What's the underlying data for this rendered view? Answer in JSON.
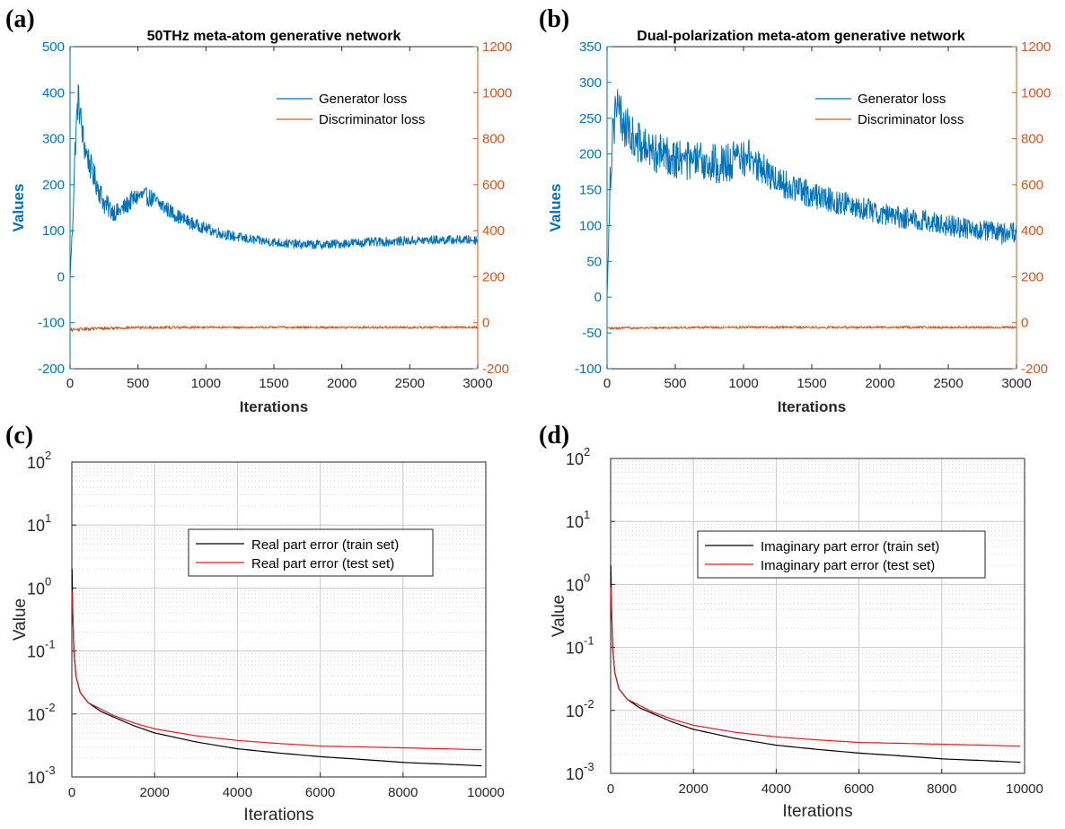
{
  "colors": {
    "generator": "#0072BD",
    "discriminator": "#D95319",
    "train": "#000000",
    "test": "#E41A1C",
    "axis": "#262626",
    "grid": "#c8c8c8"
  },
  "chart_data": [
    {
      "id": "a",
      "panel_label": "(a)",
      "type": "line",
      "title": "50THz meta-atom generative network",
      "xlabel": "Iterations",
      "ylabel_left": "Values",
      "ylabel_right": "",
      "xlim": [
        0,
        3000
      ],
      "ylim_left": [
        -200,
        500
      ],
      "ylim_right": [
        -200,
        1200
      ],
      "x_ticks": [
        0,
        500,
        1000,
        1500,
        2000,
        2500,
        3000
      ],
      "y_left_ticks": [
        -200,
        -100,
        0,
        100,
        200,
        300,
        400,
        500
      ],
      "y_right_ticks": [
        -200,
        0,
        200,
        400,
        600,
        800,
        1000,
        1200
      ],
      "legend_position": "top-right",
      "series": [
        {
          "name": "Generator loss",
          "axis": "left",
          "color_key": "generator",
          "x": [
            0,
            20,
            40,
            60,
            80,
            100,
            130,
            160,
            200,
            250,
            300,
            350,
            400,
            450,
            500,
            550,
            600,
            650,
            700,
            800,
            900,
            1000,
            1100,
            1200,
            1300,
            1400,
            1500,
            1600,
            1700,
            1800,
            1900,
            2000,
            2100,
            2200,
            2300,
            2400,
            2500,
            2600,
            2700,
            2800,
            2900,
            3000
          ],
          "y": [
            0,
            120,
            300,
            390,
            340,
            290,
            260,
            230,
            200,
            160,
            145,
            140,
            150,
            165,
            175,
            175,
            170,
            160,
            150,
            130,
            115,
            105,
            95,
            88,
            82,
            78,
            75,
            72,
            70,
            70,
            70,
            72,
            74,
            75,
            76,
            77,
            78,
            79,
            80,
            80,
            80,
            80
          ],
          "band": [
            0,
            20,
            40,
            40,
            35,
            35,
            30,
            30,
            28,
            25,
            22,
            20,
            20,
            20,
            20,
            20,
            20,
            18,
            18,
            15,
            14,
            12,
            12,
            11,
            11,
            10,
            10,
            10,
            10,
            10,
            10,
            10,
            10,
            10,
            10,
            10,
            10,
            10,
            10,
            10,
            10,
            10
          ]
        },
        {
          "name": "Discriminator loss",
          "axis": "right",
          "color_key": "discriminator",
          "x": [
            0,
            50,
            100,
            200,
            400,
            700,
            1000,
            1500,
            2000,
            2500,
            3000
          ],
          "y": [
            -30,
            -30,
            -28,
            -25,
            -22,
            -20,
            -20,
            -20,
            -20,
            -20,
            -20
          ],
          "band": [
            8,
            8,
            7,
            7,
            6,
            6,
            5,
            5,
            5,
            5,
            5
          ]
        }
      ]
    },
    {
      "id": "b",
      "panel_label": "(b)",
      "type": "line",
      "title": "Dual-polarization meta-atom generative network",
      "xlabel": "Iterations",
      "ylabel_left": "Values",
      "ylabel_right": "",
      "xlim": [
        0,
        3000
      ],
      "ylim_left": [
        -100,
        350
      ],
      "ylim_right": [
        -200,
        1200
      ],
      "x_ticks": [
        0,
        500,
        1000,
        1500,
        2000,
        2500,
        3000
      ],
      "y_left_ticks": [
        -100,
        -50,
        0,
        50,
        100,
        150,
        200,
        250,
        300,
        350
      ],
      "y_right_ticks": [
        -200,
        0,
        200,
        400,
        600,
        800,
        1000,
        1200
      ],
      "legend_position": "top-right",
      "series": [
        {
          "name": "Generator loss",
          "axis": "left",
          "color_key": "generator",
          "x": [
            0,
            20,
            40,
            60,
            80,
            100,
            150,
            200,
            300,
            400,
            500,
            600,
            700,
            800,
            900,
            1000,
            1050,
            1100,
            1200,
            1300,
            1400,
            1500,
            1600,
            1700,
            1800,
            1900,
            2000,
            2100,
            2200,
            2300,
            2400,
            2500,
            2600,
            2700,
            2800,
            2900,
            3000
          ],
          "y": [
            0,
            150,
            230,
            265,
            260,
            250,
            235,
            220,
            205,
            200,
            195,
            190,
            188,
            186,
            188,
            195,
            195,
            185,
            170,
            158,
            150,
            143,
            138,
            133,
            128,
            123,
            118,
            113,
            110,
            107,
            104,
            100,
            97,
            95,
            92,
            88,
            90
          ],
          "band": [
            0,
            30,
            40,
            40,
            35,
            35,
            30,
            30,
            28,
            28,
            28,
            28,
            28,
            28,
            28,
            28,
            25,
            25,
            22,
            20,
            20,
            18,
            18,
            18,
            16,
            16,
            16,
            15,
            15,
            15,
            15,
            15,
            15,
            15,
            15,
            15,
            15
          ]
        },
        {
          "name": "Discriminator loss",
          "axis": "right",
          "color_key": "discriminator",
          "x": [
            0,
            50,
            100,
            200,
            400,
            700,
            1000,
            1500,
            2000,
            2500,
            3000
          ],
          "y": [
            -25,
            -25,
            -24,
            -22,
            -22,
            -20,
            -20,
            -20,
            -20,
            -20,
            -20
          ],
          "band": [
            6,
            6,
            6,
            5,
            5,
            5,
            5,
            5,
            5,
            5,
            5
          ]
        }
      ]
    },
    {
      "id": "c",
      "panel_label": "(c)",
      "type": "line",
      "title": "",
      "xlabel": "Iterations",
      "ylabel": "Value",
      "yscale": "log",
      "xlim": [
        0,
        10000
      ],
      "ylim": [
        0.001,
        100
      ],
      "x_ticks": [
        0,
        2000,
        4000,
        6000,
        8000,
        10000
      ],
      "y_tick_labels": [
        {
          "base": "10",
          "exp": "-3",
          "value": 0.001
        },
        {
          "base": "10",
          "exp": "-2",
          "value": 0.01
        },
        {
          "base": "10",
          "exp": "-1",
          "value": 0.1
        },
        {
          "base": "10",
          "exp": "0",
          "value": 1
        },
        {
          "base": "10",
          "exp": "1",
          "value": 10
        },
        {
          "base": "10",
          "exp": "2",
          "value": 100
        }
      ],
      "grid": true,
      "legend_position": "center",
      "series": [
        {
          "name": "Real part error (train set)",
          "color_key": "train",
          "x": [
            5,
            20,
            50,
            100,
            200,
            400,
            700,
            1000,
            1500,
            2000,
            3000,
            4000,
            5000,
            6000,
            7000,
            8000,
            9000,
            9900
          ],
          "y": [
            2.0,
            0.5,
            0.1,
            0.04,
            0.022,
            0.015,
            0.011,
            0.009,
            0.0065,
            0.005,
            0.0036,
            0.0028,
            0.0024,
            0.0021,
            0.0019,
            0.0017,
            0.0016,
            0.0015
          ]
        },
        {
          "name": "Real part error (test set)",
          "color_key": "test",
          "x": [
            5,
            20,
            50,
            100,
            200,
            400,
            700,
            1000,
            1500,
            2000,
            3000,
            4000,
            5000,
            6000,
            7000,
            8000,
            9000,
            9900
          ],
          "y": [
            0.9,
            0.4,
            0.1,
            0.04,
            0.022,
            0.015,
            0.012,
            0.0095,
            0.0072,
            0.0058,
            0.0045,
            0.0038,
            0.0034,
            0.0031,
            0.003,
            0.0029,
            0.0028,
            0.0027
          ]
        }
      ]
    },
    {
      "id": "d",
      "panel_label": "(d)",
      "type": "line",
      "title": "",
      "xlabel": "Iterations",
      "ylabel": "Value",
      "yscale": "log",
      "xlim": [
        0,
        10000
      ],
      "ylim": [
        0.001,
        100
      ],
      "x_ticks": [
        0,
        2000,
        4000,
        6000,
        8000,
        10000
      ],
      "y_tick_labels": [
        {
          "base": "10",
          "exp": "-3",
          "value": 0.001
        },
        {
          "base": "10",
          "exp": "-2",
          "value": 0.01
        },
        {
          "base": "10",
          "exp": "-1",
          "value": 0.1
        },
        {
          "base": "10",
          "exp": "0",
          "value": 1
        },
        {
          "base": "10",
          "exp": "1",
          "value": 10
        },
        {
          "base": "10",
          "exp": "2",
          "value": 100
        }
      ],
      "grid": true,
      "legend_position": "top-center",
      "series": [
        {
          "name": "Imaginary part error (train set)",
          "color_key": "train",
          "x": [
            5,
            20,
            50,
            100,
            200,
            400,
            700,
            1000,
            1500,
            2000,
            3000,
            4000,
            5000,
            6000,
            7000,
            8000,
            9000,
            9900
          ],
          "y": [
            2.0,
            0.5,
            0.1,
            0.04,
            0.022,
            0.015,
            0.011,
            0.009,
            0.0065,
            0.005,
            0.0036,
            0.0028,
            0.0024,
            0.0021,
            0.0019,
            0.0017,
            0.0016,
            0.0015
          ]
        },
        {
          "name": "Imaginary part error (test set)",
          "color_key": "test",
          "x": [
            5,
            20,
            50,
            100,
            200,
            400,
            700,
            1000,
            1500,
            2000,
            3000,
            4000,
            5000,
            6000,
            7000,
            8000,
            9000,
            9900
          ],
          "y": [
            0.9,
            0.4,
            0.1,
            0.04,
            0.022,
            0.015,
            0.012,
            0.0095,
            0.0072,
            0.0058,
            0.0045,
            0.0038,
            0.0034,
            0.0031,
            0.003,
            0.0029,
            0.0028,
            0.0027
          ]
        }
      ]
    }
  ]
}
